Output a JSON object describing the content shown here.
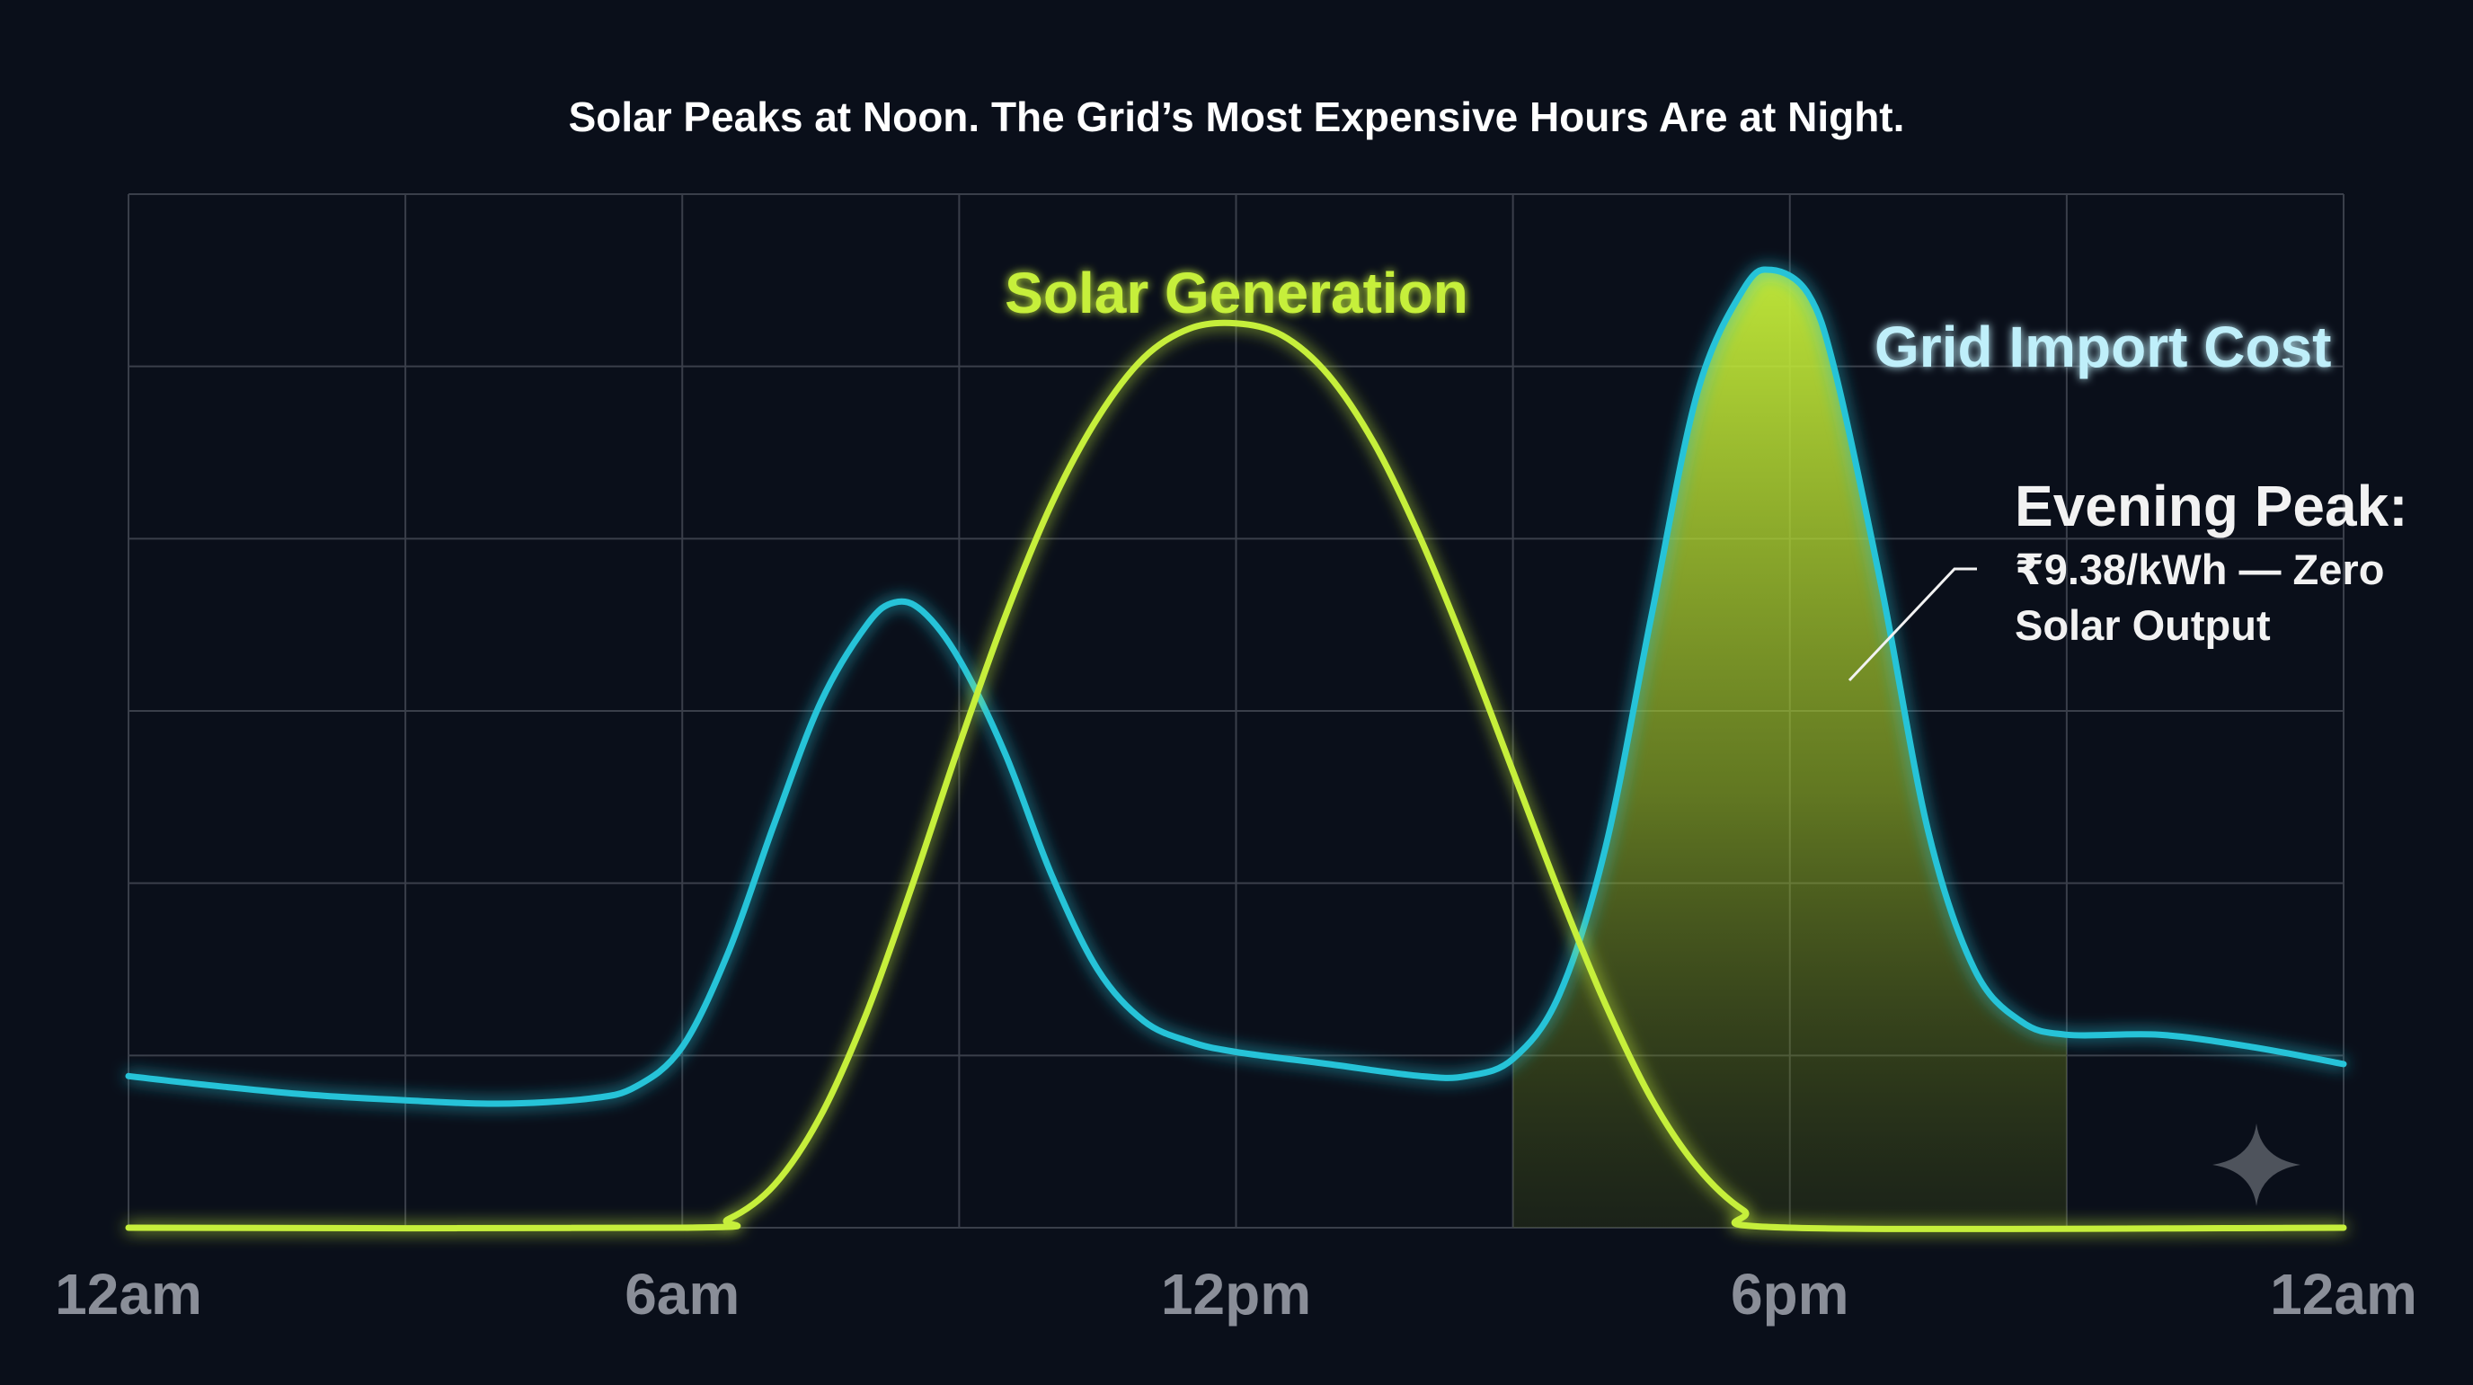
{
  "colors": {
    "background": "#0a0f1a",
    "grid": "#3a3f4a",
    "solar": "#c6ef3a",
    "grid_cost": "#25c3d8",
    "grid_cost_label": "#bfeffa",
    "tick_label": "#8a8e98",
    "title": "#ffffff",
    "annotation": "#f2f2f2"
  },
  "chart_data": {
    "type": "line",
    "title": "Solar Peaks at Noon. The Grid’s Most Expensive Hours Are at Night.",
    "xlabel": "",
    "ylabel": "",
    "x_range": [
      0,
      24
    ],
    "y_range": [
      0,
      6
    ],
    "x_ticks": [
      {
        "value": 0,
        "label": "12am"
      },
      {
        "value": 6,
        "label": "6am"
      },
      {
        "value": 12,
        "label": "12pm"
      },
      {
        "value": 18,
        "label": "6pm"
      },
      {
        "value": 24,
        "label": "12am"
      }
    ],
    "grid_x": [
      0,
      3,
      6,
      9,
      12,
      15,
      18,
      21,
      24
    ],
    "grid_y": [
      0,
      1,
      2,
      3,
      4,
      5,
      6
    ],
    "grid": true,
    "legend": "inline",
    "shaded_region": {
      "x_start": 15,
      "x_end": 21
    },
    "series": [
      {
        "name": "Solar Generation",
        "color_key": "solar",
        "points": [
          [
            0,
            0.0
          ],
          [
            6.0,
            0.0
          ],
          [
            6.5,
            0.05
          ],
          [
            7.0,
            0.25
          ],
          [
            7.5,
            0.65
          ],
          [
            8.0,
            1.25
          ],
          [
            8.5,
            2.0
          ],
          [
            9.0,
            2.8
          ],
          [
            9.5,
            3.55
          ],
          [
            10.0,
            4.2
          ],
          [
            10.5,
            4.7
          ],
          [
            11.0,
            5.05
          ],
          [
            11.5,
            5.22
          ],
          [
            12.0,
            5.25
          ],
          [
            12.5,
            5.18
          ],
          [
            13.0,
            4.95
          ],
          [
            13.5,
            4.55
          ],
          [
            14.0,
            4.0
          ],
          [
            14.5,
            3.35
          ],
          [
            15.0,
            2.65
          ],
          [
            15.5,
            1.95
          ],
          [
            16.0,
            1.3
          ],
          [
            16.5,
            0.75
          ],
          [
            17.0,
            0.35
          ],
          [
            17.5,
            0.1
          ],
          [
            18.0,
            0.0
          ],
          [
            24,
            0.0
          ]
        ]
      },
      {
        "name": "Grid Import Cost",
        "color_key": "grid_cost",
        "points": [
          [
            0,
            0.88
          ],
          [
            1.0,
            0.82
          ],
          [
            2.0,
            0.77
          ],
          [
            3.0,
            0.74
          ],
          [
            4.0,
            0.72
          ],
          [
            5.0,
            0.75
          ],
          [
            5.5,
            0.82
          ],
          [
            6.0,
            1.05
          ],
          [
            6.5,
            1.6
          ],
          [
            7.0,
            2.35
          ],
          [
            7.5,
            3.05
          ],
          [
            8.0,
            3.5
          ],
          [
            8.3,
            3.63
          ],
          [
            8.6,
            3.58
          ],
          [
            9.0,
            3.3
          ],
          [
            9.5,
            2.75
          ],
          [
            10.0,
            2.05
          ],
          [
            10.5,
            1.5
          ],
          [
            11.0,
            1.2
          ],
          [
            11.5,
            1.08
          ],
          [
            12.0,
            1.02
          ],
          [
            13.0,
            0.95
          ],
          [
            14.0,
            0.88
          ],
          [
            14.5,
            0.88
          ],
          [
            15.0,
            0.98
          ],
          [
            15.5,
            1.35
          ],
          [
            16.0,
            2.2
          ],
          [
            16.5,
            3.55
          ],
          [
            17.0,
            4.85
          ],
          [
            17.5,
            5.45
          ],
          [
            17.8,
            5.56
          ],
          [
            18.2,
            5.42
          ],
          [
            18.5,
            4.95
          ],
          [
            19.0,
            3.7
          ],
          [
            19.5,
            2.3
          ],
          [
            20.0,
            1.5
          ],
          [
            20.5,
            1.2
          ],
          [
            21.0,
            1.12
          ],
          [
            22.0,
            1.12
          ],
          [
            23.0,
            1.05
          ],
          [
            24,
            0.95
          ]
        ]
      }
    ],
    "annotations": {
      "solar_label": "Solar Generation",
      "grid_label": "Grid Import Cost",
      "peak_title": "Evening Peak:",
      "peak_line1": "₹9.38/kWh — Zero",
      "peak_line2": "Solar Output"
    }
  },
  "icons": {
    "corner": "sparkle-icon"
  }
}
